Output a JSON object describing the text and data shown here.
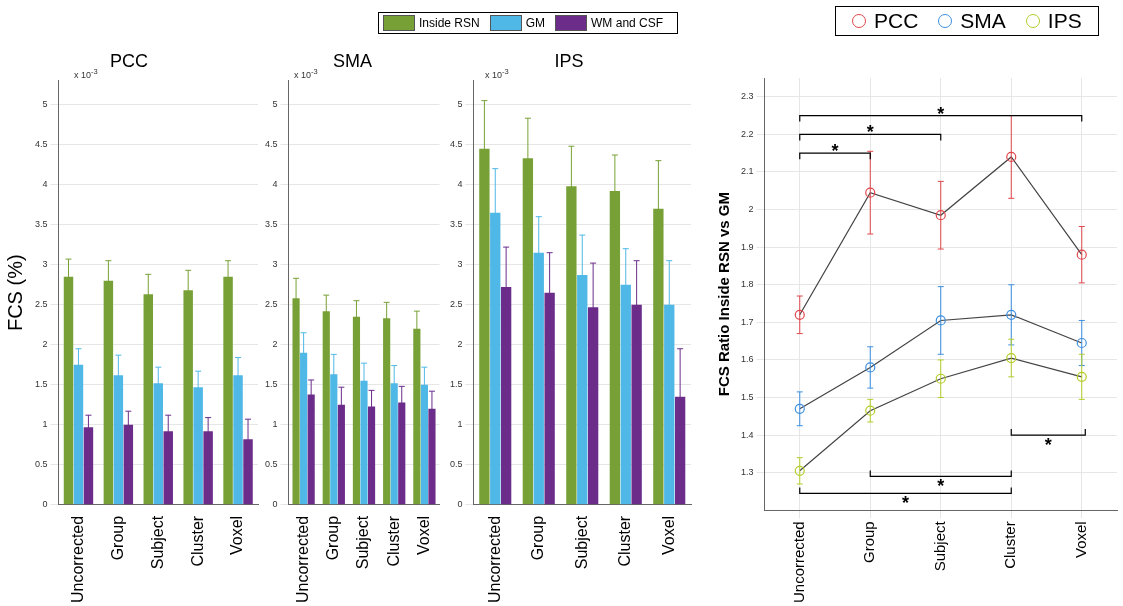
{
  "chart_data": [
    {
      "type": "bar",
      "title": "PCC",
      "ylabel": "FCS (%)",
      "categories": [
        "Uncorrected",
        "Group",
        "Subject",
        "Cluster",
        "Voxel"
      ],
      "series": [
        {
          "name": "Inside RSN",
          "color": "#77a136",
          "values": [
            2.85,
            2.8,
            2.63,
            2.68,
            2.85
          ],
          "errors": [
            0.22,
            0.25,
            0.25,
            0.25,
            0.2
          ]
        },
        {
          "name": "GM",
          "color": "#4fb8e6",
          "values": [
            1.75,
            1.62,
            1.52,
            1.47,
            1.62
          ],
          "errors": [
            0.2,
            0.25,
            0.2,
            0.2,
            0.22
          ]
        },
        {
          "name": "WM and CSF",
          "color": "#6b2c8a",
          "values": [
            0.97,
            1.0,
            0.92,
            0.92,
            0.82
          ],
          "errors": [
            0.15,
            0.17,
            0.2,
            0.17,
            0.25
          ]
        }
      ],
      "ylim": [
        0,
        5.3
      ],
      "yticks": [
        0,
        0.5,
        1,
        1.5,
        2,
        2.5,
        3,
        3.5,
        4,
        4.5,
        5
      ],
      "grid": "y",
      "legend": "top",
      "annotations": [
        "x 10$^{-3}$"
      ]
    },
    {
      "type": "bar",
      "title": "SMA",
      "categories": [
        "Uncorrected",
        "Group",
        "Subject",
        "Cluster",
        "Voxel"
      ],
      "series": [
        {
          "color": "#77a136",
          "values": [
            2.58,
            2.42,
            2.35,
            2.33,
            2.2
          ],
          "errors": [
            0.25,
            0.2,
            0.2,
            0.2,
            0.22
          ]
        },
        {
          "color": "#4fb8e6",
          "values": [
            1.9,
            1.63,
            1.55,
            1.52,
            1.5
          ],
          "errors": [
            0.25,
            0.25,
            0.22,
            0.22,
            0.22
          ]
        },
        {
          "color": "#6b2c8a",
          "values": [
            1.38,
            1.25,
            1.23,
            1.28,
            1.2
          ],
          "errors": [
            0.18,
            0.22,
            0.2,
            0.2,
            0.22
          ]
        }
      ],
      "ylim": [
        0,
        5.3
      ],
      "yticks": [
        0,
        0.5,
        1,
        1.5,
        2,
        2.5,
        3,
        3.5,
        4,
        4.5,
        5
      ],
      "grid": "y",
      "annotations": [
        "x 10$^{-3}$"
      ]
    },
    {
      "type": "bar",
      "title": "IPS",
      "categories": [
        "Uncorrected",
        "Group",
        "Subject",
        "Cluster",
        "Voxel"
      ],
      "series": [
        {
          "color": "#77a136",
          "values": [
            4.45,
            4.33,
            3.98,
            3.92,
            3.7
          ],
          "errors": [
            0.6,
            0.5,
            0.5,
            0.45,
            0.6
          ]
        },
        {
          "color": "#4fb8e6",
          "values": [
            3.65,
            3.15,
            2.87,
            2.75,
            2.5
          ],
          "errors": [
            0.55,
            0.45,
            0.5,
            0.45,
            0.55
          ]
        },
        {
          "color": "#6b2c8a",
          "values": [
            2.72,
            2.65,
            2.47,
            2.5,
            1.35
          ],
          "errors": [
            0.5,
            0.5,
            0.55,
            0.55,
            0.6
          ]
        }
      ],
      "ylim": [
        0,
        5.3
      ],
      "yticks": [
        0,
        0.5,
        1,
        1.5,
        2,
        2.5,
        3,
        3.5,
        4,
        4.5,
        5
      ],
      "grid": "y",
      "annotations": [
        "x 10$^{-3}$"
      ]
    },
    {
      "type": "line",
      "ylabel": "FCS Ratio Inside RSN vs GM",
      "categories": [
        "Uncorrected",
        "Group",
        "Subject",
        "Cluster",
        "Voxel"
      ],
      "series": [
        {
          "name": "PCC",
          "color": "#e0474c",
          "values": [
            1.72,
            2.045,
            1.985,
            2.14,
            1.88
          ],
          "errors": [
            0.05,
            0.11,
            0.09,
            0.11,
            0.075
          ]
        },
        {
          "name": "SMA",
          "color": "#3d8fe0",
          "values": [
            1.47,
            1.58,
            1.705,
            1.72,
            1.645
          ],
          "errors": [
            0.045,
            0.055,
            0.09,
            0.08,
            0.06
          ]
        },
        {
          "name": "IPS",
          "color": "#b5cc2a",
          "values": [
            1.305,
            1.465,
            1.55,
            1.605,
            1.555
          ],
          "errors": [
            0.035,
            0.03,
            0.05,
            0.05,
            0.06
          ]
        }
      ],
      "ylim": [
        1.2,
        2.35
      ],
      "yticks": [
        1.3,
        1.4,
        1.5,
        1.6,
        1.7,
        1.8,
        1.9,
        2,
        2.1,
        2.2,
        2.3
      ],
      "grid": true,
      "legend": "top right",
      "marker": "circle",
      "line_style": "solid",
      "annotations": [
        "*",
        "*",
        "*",
        "*",
        "*",
        "*"
      ]
    }
  ]
}
